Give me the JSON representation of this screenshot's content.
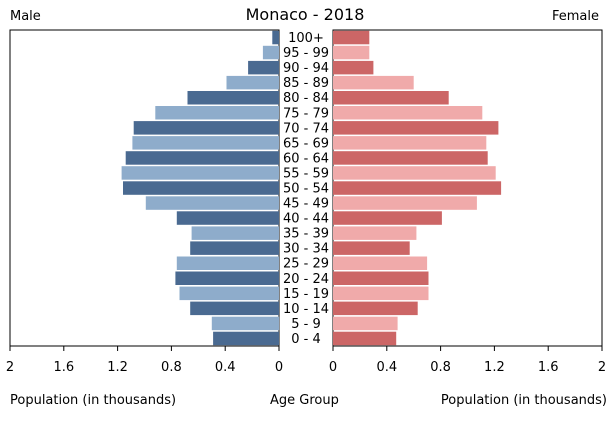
{
  "title": "Monaco - 2018",
  "labels": {
    "male": "Male",
    "female": "Female",
    "xlabel_left": "Population (in thousands)",
    "xlabel_center": "Age Group",
    "xlabel_right": "Population (in thousands)"
  },
  "chart_data": {
    "type": "bar",
    "orientation": "horizontal-population-pyramid",
    "title": "Monaco - 2018",
    "categories": [
      "100+",
      "95 - 99",
      "90 - 94",
      "85 - 89",
      "80 - 84",
      "75 - 79",
      "70 - 74",
      "65 - 69",
      "60 - 64",
      "55 - 59",
      "50 - 54",
      "45 - 49",
      "40 - 44",
      "35 - 39",
      "30 - 34",
      "25 - 29",
      "20 - 24",
      "15 - 19",
      "10 - 14",
      "5 - 9",
      "0 - 4"
    ],
    "series": [
      {
        "name": "Male",
        "values": [
          0.05,
          0.12,
          0.23,
          0.39,
          0.68,
          0.92,
          1.08,
          1.09,
          1.14,
          1.17,
          1.16,
          0.99,
          0.76,
          0.65,
          0.66,
          0.76,
          0.77,
          0.74,
          0.66,
          0.5,
          0.49
        ]
      },
      {
        "name": "Female",
        "values": [
          0.27,
          0.27,
          0.3,
          0.6,
          0.86,
          1.11,
          1.23,
          1.14,
          1.15,
          1.21,
          1.25,
          1.07,
          0.81,
          0.62,
          0.57,
          0.7,
          0.71,
          0.71,
          0.63,
          0.48,
          0.47
        ]
      }
    ],
    "xlim": [
      0,
      2
    ],
    "ticks": [
      "2",
      "1.6",
      "1.2",
      "0.8",
      "0.4",
      "0",
      "0",
      "0.4",
      "0.8",
      "1.2",
      "1.6",
      "2"
    ],
    "colors": {
      "male_dark": "#4a6a91",
      "male_light": "#8eaccb",
      "female_dark": "#cc6666",
      "female_light": "#f0aaaa"
    }
  }
}
